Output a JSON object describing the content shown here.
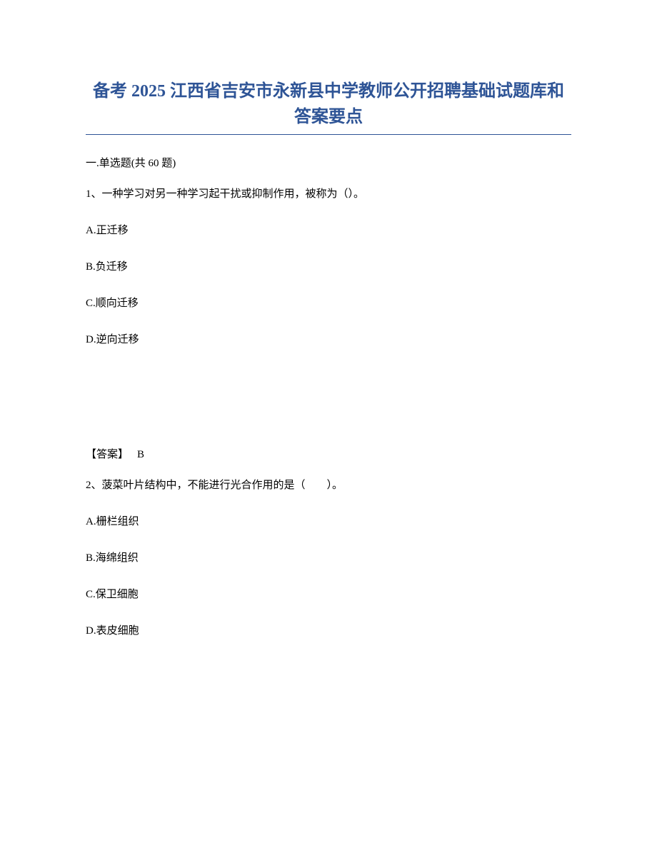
{
  "title": "备考 2025 江西省吉安市永新县中学教师公开招聘基础试题库和答案要点",
  "section_header": "一.单选题(共 60 题)",
  "q1": {
    "text": "1、一种学习对另一种学习起干扰或抑制作用，被称为（）。",
    "option_a": "A.正迁移",
    "option_b": "B.负迁移",
    "option_c": "C.顺向迁移",
    "option_d": "D.逆向迁移",
    "answer_label": "【答案】",
    "answer_value": "B"
  },
  "q2": {
    "text": "2、菠菜叶片结构中，不能进行光合作用的是（　　）。",
    "option_a": "A.栅栏组织",
    "option_b": "B.海绵组织",
    "option_c": "C.保卫细胞",
    "option_d": "D.表皮细胞"
  },
  "colors": {
    "title_color": "#2e5496",
    "text_color": "#000000",
    "background": "#ffffff",
    "underline_color": "#2e5496"
  },
  "typography": {
    "title_fontsize": 24,
    "body_fontsize": 15,
    "font_family": "SimSun"
  }
}
